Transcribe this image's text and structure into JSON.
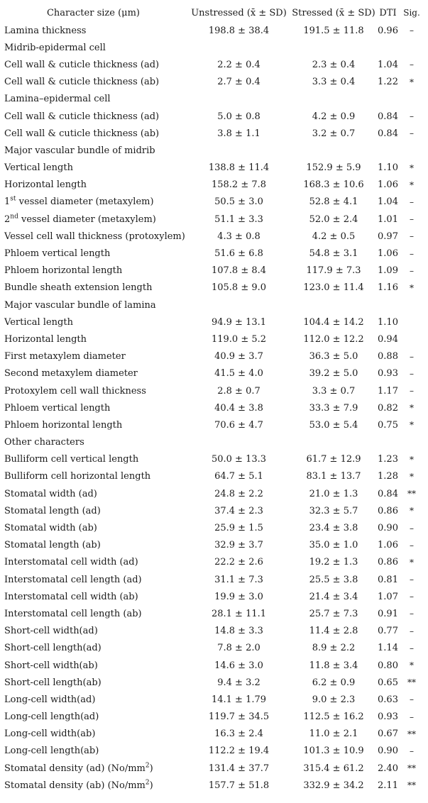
{
  "table": {
    "headers": {
      "character": "Character size (μm)",
      "unstressed": "Unstressed (x̄ ± SD)",
      "stressed": "Stressed (x̄ ± SD)",
      "dti": "DTI",
      "sig": "Sig."
    },
    "rows": [
      {
        "type": "data",
        "name": "Lamina thickness",
        "unstressed": "198.8 ± 38.4",
        "stressed": "191.5 ± 11.8",
        "dti": "0.96",
        "sig": "–"
      },
      {
        "type": "section",
        "name": "Midrib-epidermal cell"
      },
      {
        "type": "data",
        "name": "Cell wall & cuticle thickness (ad)",
        "unstressed": "2.2 ± 0.4",
        "stressed": "2.3 ± 0.4",
        "dti": "1.04",
        "sig": "–"
      },
      {
        "type": "data",
        "name": "Cell wall & cuticle thickness (ab)",
        "unstressed": "2.7 ± 0.4",
        "stressed": "3.3 ± 0.4",
        "dti": "1.22",
        "sig": "*"
      },
      {
        "type": "section",
        "name": "Lamina–epidermal cell"
      },
      {
        "type": "data",
        "name": "Cell wall & cuticle thickness (ad)",
        "unstressed": "5.0 ± 0.8",
        "stressed": "4.2 ± 0.9",
        "dti": "0.84",
        "sig": "–"
      },
      {
        "type": "data",
        "name": "Cell wall & cuticle thickness (ab)",
        "unstressed": "3.8 ± 1.1",
        "stressed": "3.2 ± 0.7",
        "dti": "0.84",
        "sig": "–"
      },
      {
        "type": "section",
        "name": "Major vascular bundle of midrib"
      },
      {
        "type": "data",
        "name": "Vertical length",
        "unstressed": "138.8 ± 11.4",
        "stressed": "152.9 ± 5.9",
        "dti": "1.10",
        "sig": "*"
      },
      {
        "type": "data",
        "name": "Horizontal length",
        "unstressed": "158.2 ± 7.8",
        "stressed": "168.3 ± 10.6",
        "dti": "1.06",
        "sig": "*"
      },
      {
        "type": "data",
        "name": "1~st~ vessel diameter (metaxylem)",
        "unstressed": "50.5 ± 3.0",
        "stressed": "52.8 ± 4.1",
        "dti": "1.04",
        "sig": "–"
      },
      {
        "type": "data",
        "name": "2~nd~ vessel diameter (metaxylem)",
        "unstressed": "51.1 ± 3.3",
        "stressed": "52.0 ± 2.4",
        "dti": "1.01",
        "sig": "–"
      },
      {
        "type": "data",
        "name": "Vessel cell wall thickness (protoxylem)",
        "unstressed": "4.3 ± 0.8",
        "stressed": "4.2 ± 0.5",
        "dti": "0.97",
        "sig": "–"
      },
      {
        "type": "data",
        "name": "Phloem vertical length",
        "unstressed": "51.6 ± 6.8",
        "stressed": "54.8 ± 3.1",
        "dti": "1.06",
        "sig": "–"
      },
      {
        "type": "data",
        "name": "Phloem horizontal length",
        "unstressed": "107.8 ± 8.4",
        "stressed": "117.9 ± 7.3",
        "dti": "1.09",
        "sig": "–"
      },
      {
        "type": "data",
        "name": "Bundle sheath extension length",
        "unstressed": "105.8 ± 9.0",
        "stressed": "123.0 ± 11.4",
        "dti": "1.16",
        "sig": "*"
      },
      {
        "type": "section",
        "name": "Major vascular bundle of lamina"
      },
      {
        "type": "data",
        "name": "Vertical length",
        "unstressed": "94.9 ± 13.1",
        "stressed": "104.4 ± 14.2",
        "dti": "1.10",
        "sig": ""
      },
      {
        "type": "data",
        "name": "Horizontal length",
        "unstressed": "119.0 ± 5.2",
        "stressed": "112.0 ± 12.2",
        "dti": "0.94",
        "sig": ""
      },
      {
        "type": "data",
        "name": "First metaxylem diameter",
        "unstressed": "40.9 ± 3.7",
        "stressed": "36.3 ± 5.0",
        "dti": "0.88",
        "sig": "–"
      },
      {
        "type": "data",
        "name": "Second metaxylem diameter",
        "unstressed": "41.5 ± 4.0",
        "stressed": "39.2 ± 5.0",
        "dti": "0.93",
        "sig": "–"
      },
      {
        "type": "data",
        "name": "Protoxylem cell wall thickness",
        "unstressed": "2.8 ± 0.7",
        "stressed": "3.3 ± 0.7",
        "dti": "1.17",
        "sig": "–"
      },
      {
        "type": "data",
        "name": "Phloem vertical length",
        "unstressed": "40.4 ± 3.8",
        "stressed": "33.3 ± 7.9",
        "dti": "0.82",
        "sig": "*"
      },
      {
        "type": "data",
        "name": "Phloem horizontal length",
        "unstressed": "70.6 ± 4.7",
        "stressed": "53.0 ± 5.4",
        "dti": "0.75",
        "sig": "*"
      },
      {
        "type": "section",
        "name": "Other characters"
      },
      {
        "type": "data",
        "name": "Bulliform cell vertical length",
        "unstressed": "50.0 ± 13.3",
        "stressed": "61.7 ± 12.9",
        "dti": "1.23",
        "sig": "*"
      },
      {
        "type": "data",
        "name": "Bulliform cell horizontal length",
        "unstressed": "64.7 ± 5.1",
        "stressed": "83.1 ± 13.7",
        "dti": "1.28",
        "sig": "*"
      },
      {
        "type": "data",
        "name": "Stomatal width (ad)",
        "unstressed": "24.8 ± 2.2",
        "stressed": "21.0 ± 1.3",
        "dti": "0.84",
        "sig": "**"
      },
      {
        "type": "data",
        "name": "Stomatal length (ad)",
        "unstressed": "37.4 ± 2.3",
        "stressed": "32.3 ± 5.7",
        "dti": "0.86",
        "sig": "*"
      },
      {
        "type": "data",
        "name": "Stomatal width (ab)",
        "unstressed": "25.9 ± 1.5",
        "stressed": "23.4 ± 3.8",
        "dti": "0.90",
        "sig": "–"
      },
      {
        "type": "data",
        "name": "Stomatal length (ab)",
        "unstressed": "32.9 ± 3.7",
        "stressed": "35.0 ± 1.0",
        "dti": "1.06",
        "sig": "–"
      },
      {
        "type": "data",
        "name": "Interstomatal cell width (ad)",
        "unstressed": "22.2 ± 2.6",
        "stressed": "19.2 ± 1.3",
        "dti": "0.86",
        "sig": "*"
      },
      {
        "type": "data",
        "name": "Interstomatal cell length (ad)",
        "unstressed": "31.1 ± 7.3",
        "stressed": "25.5 ± 3.8",
        "dti": "0.81",
        "sig": "–"
      },
      {
        "type": "data",
        "name": "Interstomatal cell width (ab)",
        "unstressed": "19.9 ± 3.0",
        "stressed": "21.4 ± 3.4",
        "dti": "1.07",
        "sig": "–"
      },
      {
        "type": "data",
        "name": "Interstomatal cell length (ab)",
        "unstressed": "28.1 ± 11.1",
        "stressed": "25.7 ± 7.3",
        "dti": "0.91",
        "sig": "–"
      },
      {
        "type": "data",
        "name": "Short-cell width(ad)",
        "unstressed": "14.8 ± 3.3",
        "stressed": "11.4 ± 2.8",
        "dti": "0.77",
        "sig": "–"
      },
      {
        "type": "data",
        "name": "Short-cell length(ad)",
        "unstressed": "7.8 ± 2.0",
        "stressed": "8.9 ± 2.2",
        "dti": "1.14",
        "sig": "–"
      },
      {
        "type": "data",
        "name": "Short-cell width(ab)",
        "unstressed": "14.6 ± 3.0",
        "stressed": "11.8 ± 3.4",
        "dti": "0.80",
        "sig": "*"
      },
      {
        "type": "data",
        "name": "Short-cell length(ab)",
        "unstressed": "9.4 ± 3.2",
        "stressed": "6.2 ± 0.9",
        "dti": "0.65",
        "sig": "**"
      },
      {
        "type": "data",
        "name": "Long-cell width(ad)",
        "unstressed": "14.1 ± 1.79",
        "stressed": "9.0 ± 2.3",
        "dti": "0.63",
        "sig": "–"
      },
      {
        "type": "data",
        "name": "Long-cell length(ad)",
        "unstressed": "119.7 ± 34.5",
        "stressed": "112.5 ± 16.2",
        "dti": "0.93",
        "sig": "–"
      },
      {
        "type": "data",
        "name": "Long-cell width(ab)",
        "unstressed": "16.3 ± 2.4",
        "stressed": "11.0 ± 2.1",
        "dti": "0.67",
        "sig": "**"
      },
      {
        "type": "data",
        "name": "Long-cell length(ab)",
        "unstressed": "112.2 ± 19.4",
        "stressed": "101.3 ± 10.9",
        "dti": "0.90",
        "sig": "–"
      },
      {
        "type": "data",
        "name": "Stomatal density (ad) (No/mm~2~)",
        "unstressed": "131.4 ± 37.7",
        "stressed": "315.4 ± 61.2",
        "dti": "2.40",
        "sig": "**"
      },
      {
        "type": "data",
        "name": "Stomatal density (ab) (No/mm~2~)",
        "unstressed": "157.7 ± 51.8",
        "stressed": "332.9 ± 34.2",
        "dti": "2.11",
        "sig": "**"
      }
    ]
  }
}
